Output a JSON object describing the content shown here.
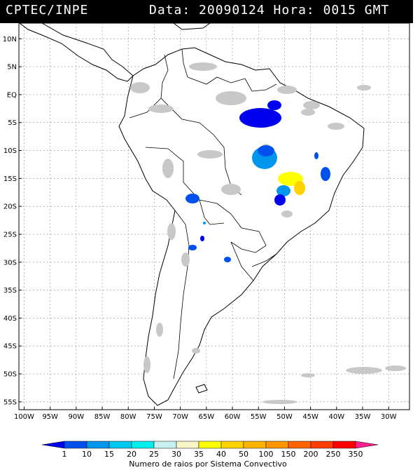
{
  "header": {
    "agency": "CPTEC/INPE",
    "date_time": "Data: 20090124 Hora: 0015 GMT"
  },
  "latitude_labels": [
    "10N",
    "5N",
    "EQ",
    "5S",
    "10S",
    "15S",
    "20S",
    "25S",
    "30S",
    "35S",
    "40S",
    "45S",
    "50S",
    "55S"
  ],
  "latitude_values": [
    10,
    5,
    0,
    -5,
    -10,
    -15,
    -20,
    -25,
    -30,
    -35,
    -40,
    -45,
    -50,
    -55
  ],
  "longitude_labels": [
    "100W",
    "95W",
    "90W",
    "85W",
    "80W",
    "75W",
    "70W",
    "65W",
    "60W",
    "55W",
    "50W",
    "45W",
    "40W",
    "35W",
    "30W"
  ],
  "longitude_values": [
    -100,
    -95,
    -90,
    -85,
    -80,
    -75,
    -70,
    -65,
    -60,
    -55,
    -50,
    -45,
    -40,
    -35,
    -30
  ],
  "colorbar": {
    "labels": [
      "1",
      "10",
      "15",
      "20",
      "25",
      "30",
      "35",
      "40",
      "50",
      "100",
      "150",
      "200",
      "250",
      "350"
    ],
    "colors": [
      "#0000ee",
      "#0050ee",
      "#0096ee",
      "#00c8ee",
      "#00eeee",
      "#c8f0f0",
      "#f5f5c8",
      "#ffff00",
      "#ffd200",
      "#ffb400",
      "#ff9600",
      "#ff6400",
      "#ff3c00",
      "#ff0000",
      "#ff1e8c"
    ],
    "title": "Numero de raios por Sistema Convectivo"
  },
  "colors": {
    "land": "#ffffff",
    "coast": "#000000",
    "cloud": "#c0c0c0",
    "grid": "#909090"
  }
}
